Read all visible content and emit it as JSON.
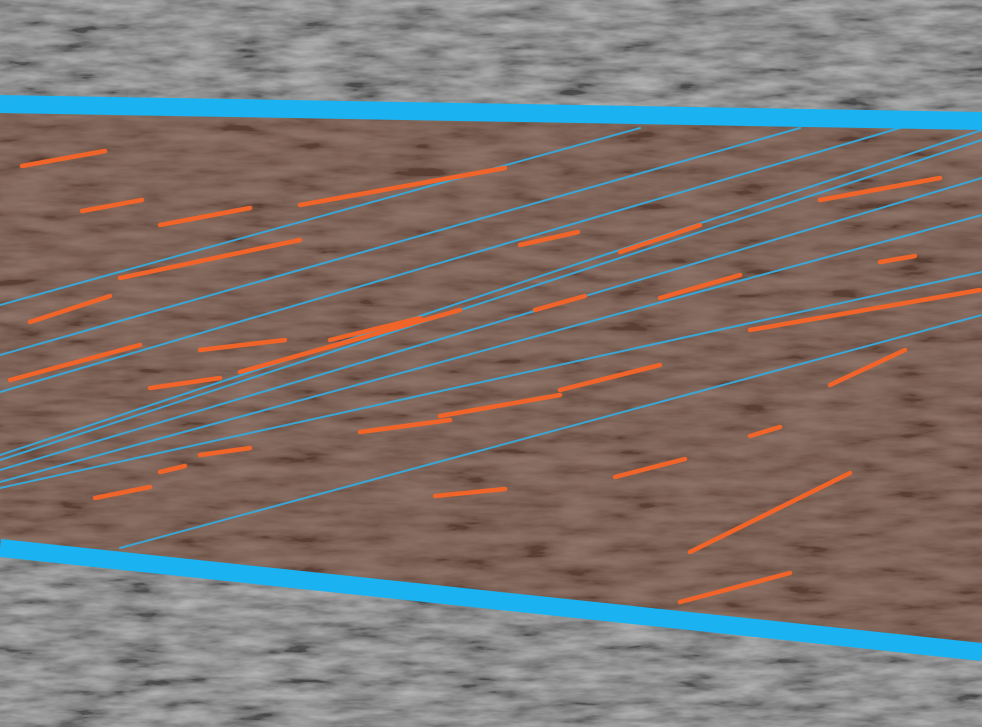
{
  "image": {
    "kind": "ultrasound-muscle-annotation",
    "colors": {
      "background_tissue": "#5f5f5f",
      "muscle_tint": "#6b4c40",
      "aponeurosis_line": "#1ab2f0",
      "fascicle_line": "#3aa6d6",
      "fiber_segment": "#f0642a"
    },
    "annotations": {
      "aponeuroses": 2,
      "fascicle_lines": 9,
      "fiber_segments": 30
    }
  }
}
